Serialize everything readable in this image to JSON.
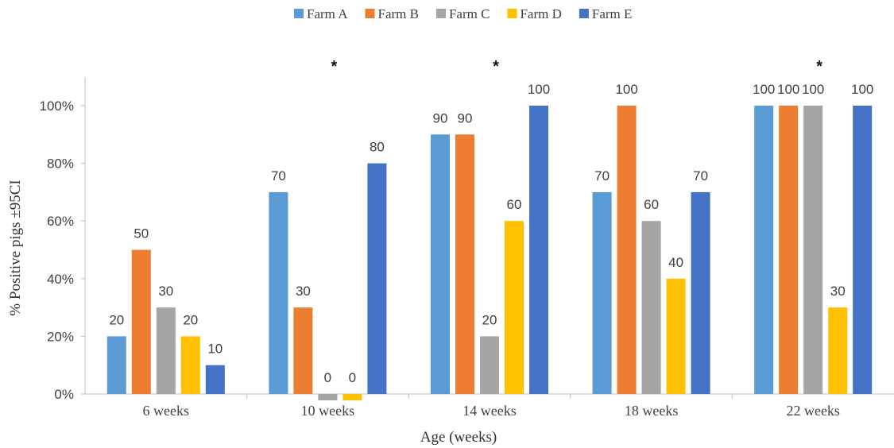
{
  "chart_data": {
    "type": "bar",
    "title": "",
    "xlabel": "Age (weeks)",
    "ylabel": "% Positive pigs ±95CI",
    "categories": [
      "6 weeks",
      "10 weeks",
      "14 weeks",
      "18 weeks",
      "22 weeks"
    ],
    "series": [
      {
        "name": "Farm A",
        "color": "#5B9BD5",
        "values": [
          20,
          70,
          90,
          70,
          100
        ]
      },
      {
        "name": "Farm B",
        "color": "#ED7D31",
        "values": [
          50,
          30,
          90,
          100,
          100
        ]
      },
      {
        "name": "Farm C",
        "color": "#A5A5A5",
        "values": [
          30,
          0,
          20,
          60,
          100
        ]
      },
      {
        "name": "Farm D",
        "color": "#FFC000",
        "values": [
          20,
          0,
          60,
          40,
          30
        ]
      },
      {
        "name": "Farm E",
        "color": "#4472C4",
        "values": [
          10,
          80,
          100,
          70,
          100
        ]
      }
    ],
    "ylim": [
      0,
      110
    ],
    "yticks": [
      "0%",
      "20%",
      "40%",
      "60%",
      "80%",
      "100%"
    ],
    "significance_markers": [
      "",
      "*",
      "*",
      "",
      "*"
    ],
    "grid": false,
    "legend_position": "top"
  }
}
